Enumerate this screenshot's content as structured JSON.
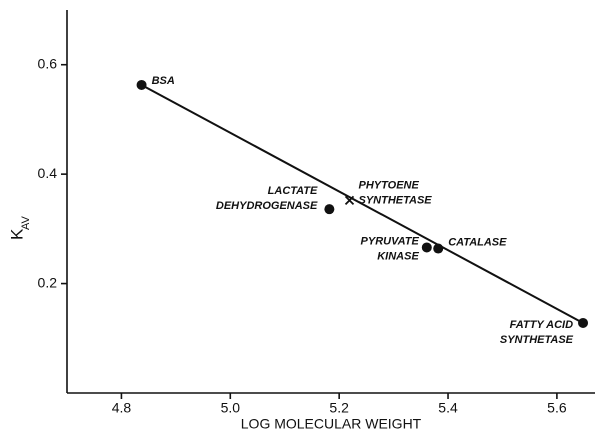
{
  "chart_data": {
    "type": "scatter",
    "x_label": "LOG MOLECULAR WEIGHT",
    "y_label": "K",
    "y_label_sub": "AV",
    "xlim": [
      4.7,
      5.67
    ],
    "ylim": [
      0,
      0.7
    ],
    "xticks": [
      4.8,
      5.0,
      5.2,
      5.4,
      5.6
    ],
    "yticks": [
      0.2,
      0.4,
      0.6
    ],
    "xtick_labels": [
      "4.8",
      "5.0",
      "5.2",
      "5.4",
      "5.6"
    ],
    "points": [
      {
        "label": [
          "BSA"
        ],
        "x": 4.837,
        "y": 0.563,
        "marker": "dot"
      },
      {
        "label": [
          "LACTATE",
          "DEHYDROGENASE"
        ],
        "x": 5.182,
        "y": 0.336,
        "marker": "dot"
      },
      {
        "label": [
          "PHYTOENE",
          "SYNTHETASE"
        ],
        "x": 5.219,
        "y": 0.352,
        "marker": "x"
      },
      {
        "label": [
          "PYRUVATE",
          "KINASE"
        ],
        "x": 5.361,
        "y": 0.266,
        "marker": "dot"
      },
      {
        "label": [
          "CATALASE"
        ],
        "x": 5.382,
        "y": 0.264,
        "marker": "dot"
      },
      {
        "label": [
          "FATTY ACID",
          "SYNTHETASE"
        ],
        "x": 5.648,
        "y": 0.128,
        "marker": "dot"
      }
    ],
    "fit_line": {
      "x": [
        4.837,
        5.648
      ],
      "y": [
        0.563,
        0.128
      ]
    },
    "color": "#111111"
  }
}
